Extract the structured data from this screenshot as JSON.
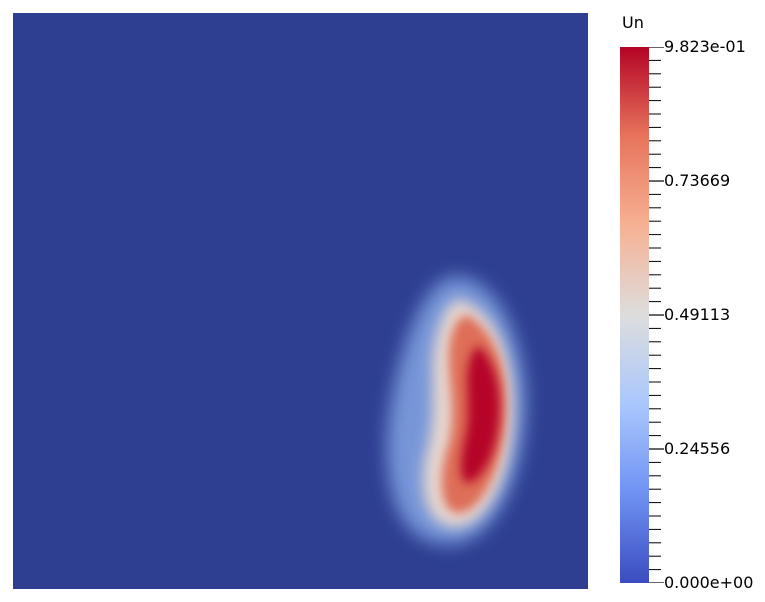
{
  "legend": {
    "title": "Un",
    "max_label": "9.823e-01",
    "min_label": "0.000e+00",
    "tick_labels": [
      {
        "value": 0.73669,
        "label": "0.73669"
      },
      {
        "value": 0.49113,
        "label": "0.49113"
      },
      {
        "value": 0.24556,
        "label": "0.24556"
      }
    ],
    "range": [
      0,
      0.9823
    ],
    "colormap": [
      "#3b4cc0",
      "#6f92f3",
      "#aac7fd",
      "#dddddd",
      "#f7b194",
      "#e7745b",
      "#b40426"
    ]
  },
  "field": {
    "background_color": "#3b4cc0",
    "peak_color": "#b40426"
  }
}
